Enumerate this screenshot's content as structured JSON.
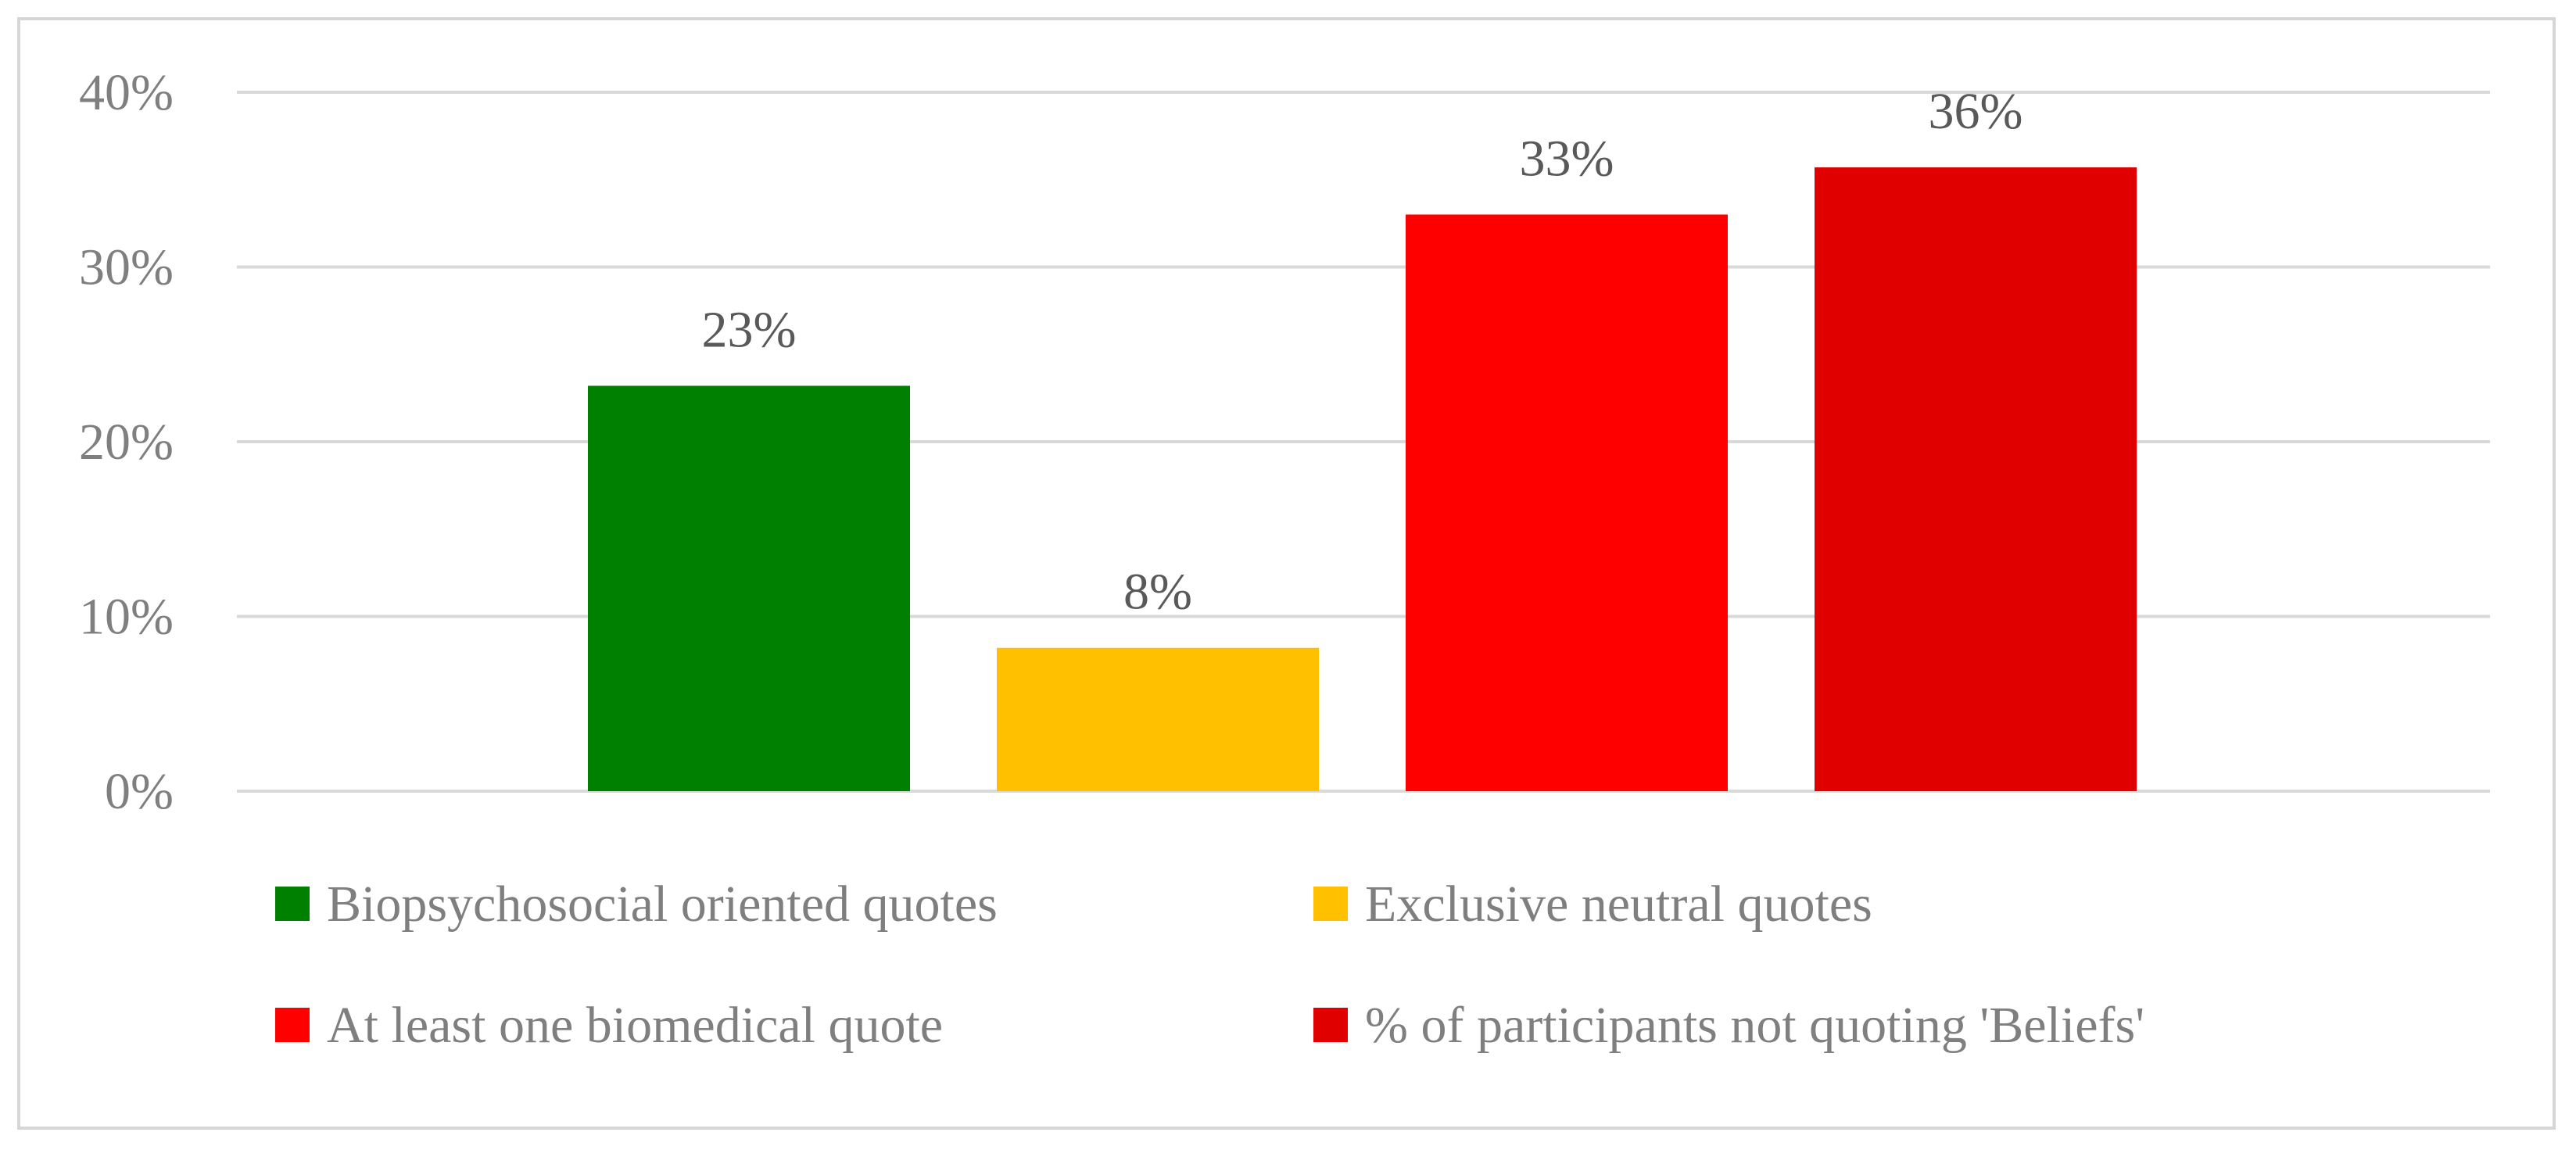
{
  "chart_data": {
    "type": "bar",
    "title": "",
    "xlabel": "",
    "ylabel": "",
    "ylim": [
      0,
      40
    ],
    "y_ticks": [
      0,
      10,
      20,
      30,
      40
    ],
    "y_tick_format": "percent",
    "grid": true,
    "legend_position": "bottom",
    "categories": [
      "Biopsychosocial oriented quotes",
      "Exclusive neutral quotes",
      "At least one biomedical quote",
      "% of participants not quoting 'Beliefs'"
    ],
    "values": [
      23.2,
      8.2,
      33.0,
      35.7
    ],
    "data_labels": [
      "23%",
      "8%",
      "33%",
      "36%"
    ],
    "colors": [
      "#008000",
      "#ffc000",
      "#ff0000",
      "#e00000"
    ],
    "legend": [
      {
        "label": "Biopsychosocial oriented quotes",
        "color": "#008000"
      },
      {
        "label": "Exclusive neutral quotes",
        "color": "#ffc000"
      },
      {
        "label": "At least one biomedical quote",
        "color": "#ff0000"
      },
      {
        "label": "% of participants not quoting 'Beliefs'",
        "color": "#e00000"
      }
    ],
    "gridline_color": "#d9d9d9"
  }
}
